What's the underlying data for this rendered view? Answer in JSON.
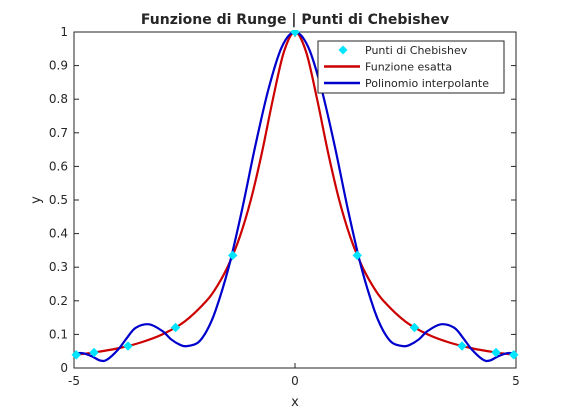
{
  "chart_data": {
    "type": "line",
    "title": "Funzione di Runge | Punti di Chebishev",
    "xlabel": "x",
    "ylabel": "y",
    "xlim": [
      -5,
      5
    ],
    "ylim": [
      0,
      1
    ],
    "xticks": [
      -5,
      0,
      5
    ],
    "yticks": [
      0,
      0.1,
      0.2,
      0.3,
      0.4,
      0.5,
      0.6,
      0.7,
      0.8,
      0.9,
      1
    ],
    "xtick_labels": [
      "-5",
      "0",
      "5"
    ],
    "ytick_labels": [
      "0",
      "0.1",
      "0.2",
      "0.3",
      "0.4",
      "0.5",
      "0.6",
      "0.7",
      "0.8",
      "0.9",
      "1"
    ],
    "grid": false,
    "legend": {
      "position": "top-right",
      "entries": [
        "Punti di Chebishev",
        "Funzione esatta",
        "Polinomio interpolante"
      ]
    },
    "series": [
      {
        "name": "Punti di Chebishev",
        "kind": "markers",
        "marker": "diamond",
        "color": "#00e5ff",
        "x": [
          4.9491,
          4.5482,
          3.7787,
          2.7032,
          1.4087,
          0.0,
          -1.4087,
          -2.7032,
          -3.7787,
          -4.5482,
          -4.9491
        ],
        "y": [
          0.0392,
          0.0461,
          0.0654,
          0.1204,
          0.3351,
          1.0,
          0.3351,
          0.1204,
          0.0654,
          0.0461,
          0.0392
        ]
      },
      {
        "name": "Funzione esatta",
        "kind": "line",
        "color": "#cc0000",
        "function": "1/(1+x^2)",
        "x": [
          -5,
          -4.5,
          -4,
          -3.5,
          -3,
          -2.5,
          -2,
          -1.75,
          -1.5,
          -1.25,
          -1,
          -0.75,
          -0.5,
          -0.25,
          0,
          0.25,
          0.5,
          0.75,
          1,
          1.25,
          1.5,
          1.75,
          2,
          2.5,
          3,
          3.5,
          4,
          4.5,
          5
        ],
        "y": [
          0.0385,
          0.0471,
          0.0588,
          0.0755,
          0.1,
          0.1379,
          0.2,
          0.2462,
          0.3077,
          0.3902,
          0.5,
          0.64,
          0.8,
          0.9412,
          1.0,
          0.9412,
          0.8,
          0.64,
          0.5,
          0.3902,
          0.3077,
          0.2462,
          0.2,
          0.1379,
          0.1,
          0.0755,
          0.0588,
          0.0471,
          0.0385
        ]
      },
      {
        "name": "Polinomio interpolante",
        "kind": "line",
        "color": "#0000cc",
        "x": [
          -5,
          -4.93,
          -4.8,
          -4.6,
          -4.4,
          -4.25,
          -4.0,
          -3.8,
          -3.6,
          -3.3,
          -3.0,
          -2.8,
          -2.6,
          -2.45,
          -2.2,
          -2.0,
          -1.8,
          -1.5,
          -1.2,
          -0.9,
          -0.6,
          -0.3,
          0,
          0.3,
          0.6,
          0.9,
          1.2,
          1.5,
          1.8,
          2.0,
          2.2,
          2.45,
          2.6,
          2.8,
          3.0,
          3.3,
          3.6,
          3.8,
          4.0,
          4.25,
          4.4,
          4.6,
          4.8,
          4.93,
          5
        ],
        "y": [
          0.035,
          0.043,
          0.044,
          0.035,
          0.022,
          0.025,
          0.055,
          0.09,
          0.12,
          0.13,
          0.11,
          0.085,
          0.069,
          0.065,
          0.075,
          0.11,
          0.17,
          0.3,
          0.47,
          0.66,
          0.83,
          0.955,
          1.0,
          0.955,
          0.83,
          0.66,
          0.47,
          0.3,
          0.17,
          0.11,
          0.075,
          0.065,
          0.069,
          0.085,
          0.11,
          0.13,
          0.12,
          0.09,
          0.055,
          0.025,
          0.022,
          0.035,
          0.044,
          0.043,
          0.035
        ]
      }
    ]
  }
}
